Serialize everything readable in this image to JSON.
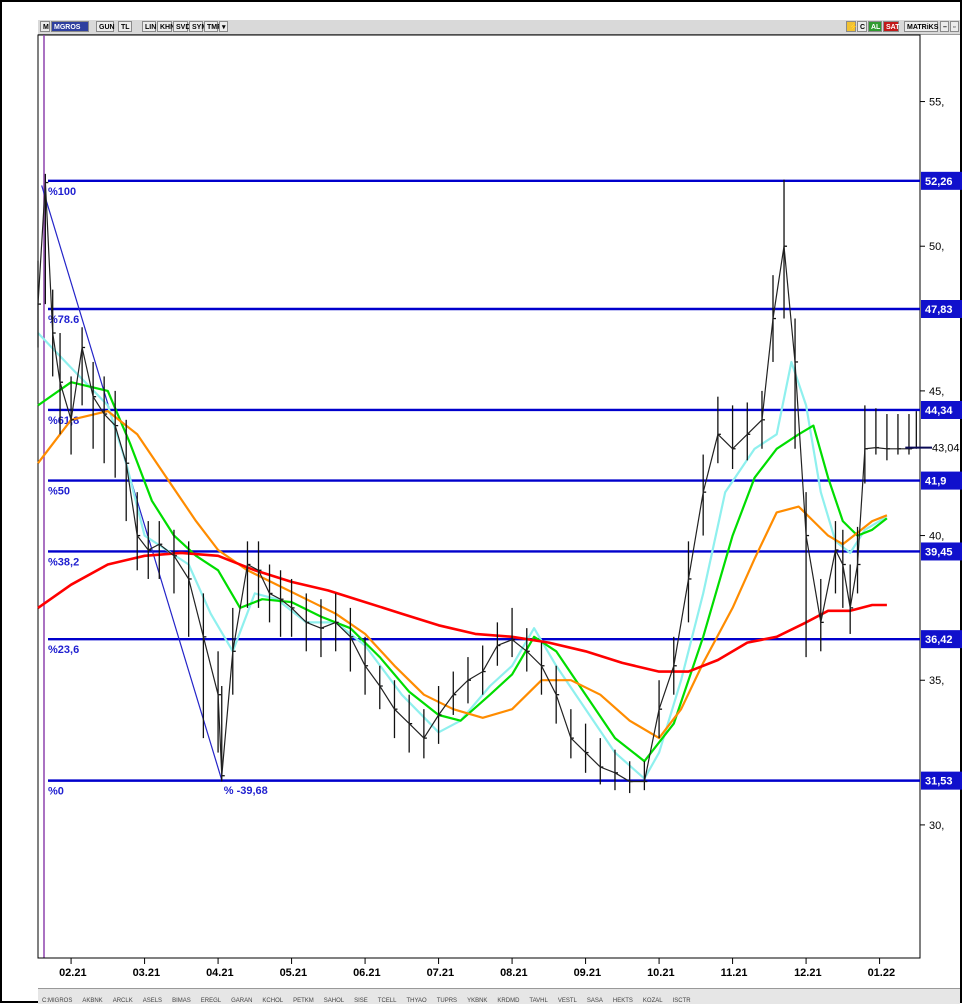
{
  "toolbar": {
    "symbol": "MGROS",
    "buttons": [
      "GUN",
      "TL",
      "LIN",
      "KHN",
      "SVD",
      "SYM",
      "TMP"
    ],
    "right_buttons": [
      "C",
      "AL",
      "SAT",
      "MATRiKS"
    ]
  },
  "chart_data": {
    "type": "line",
    "title": "",
    "symbol": "MGROS",
    "xlabel": "",
    "ylabel": "",
    "x_ticks": [
      "02.21",
      "03.21",
      "04.21",
      "05.21",
      "06.21",
      "07.21",
      "08.21",
      "09.21",
      "10.21",
      "11.21",
      "12.21",
      "01.22"
    ],
    "y_ticks": [
      "55,",
      "50,",
      "45,",
      "40,",
      "35,",
      "30,"
    ],
    "y_tick_values": [
      55,
      50,
      45,
      40,
      35,
      30
    ],
    "ylim": [
      25.4,
      57.3
    ],
    "xlim_months": [
      0.55,
      12.55
    ],
    "grid": false,
    "fib_levels": [
      {
        "label": "%100",
        "value": 52.26,
        "value_label": "52,26"
      },
      {
        "label": "%78.6",
        "value": 47.83,
        "value_label": "47,83"
      },
      {
        "label": "%61,8",
        "value": 44.34,
        "value_label": "44,34"
      },
      {
        "label": "%50",
        "value": 41.9,
        "value_label": "41,9"
      },
      {
        "label": "%38,2",
        "value": 39.45,
        "value_label": "39,45"
      },
      {
        "label": "%23,6",
        "value": 36.42,
        "value_label": "36,42"
      },
      {
        "label": "%0",
        "value": 31.53,
        "value_label": "31,53"
      }
    ],
    "last_price": {
      "value": 43.04,
      "label": "43,04"
    },
    "trend_line": {
      "label": "% -39,68",
      "from": {
        "month": 0.6,
        "value": 52.1
      },
      "to": {
        "month": 3.05,
        "value": 31.55
      }
    },
    "price": {
      "name": "Price",
      "x": [
        0.55,
        0.65,
        0.75,
        0.85,
        1.0,
        1.15,
        1.3,
        1.45,
        1.6,
        1.75,
        1.9,
        2.05,
        2.2,
        2.4,
        2.6,
        2.8,
        3.0,
        3.05,
        3.2,
        3.4,
        3.55,
        3.7,
        3.85,
        4.0,
        4.2,
        4.4,
        4.6,
        4.8,
        5.0,
        5.2,
        5.4,
        5.6,
        5.8,
        6.0,
        6.2,
        6.4,
        6.6,
        6.8,
        7.0,
        7.2,
        7.4,
        7.6,
        7.8,
        8.0,
        8.2,
        8.4,
        8.6,
        8.8,
        9.0,
        9.2,
        9.4,
        9.6,
        9.8,
        10.0,
        10.2,
        10.4,
        10.55,
        10.7,
        10.85,
        11.0,
        11.2,
        11.4,
        11.5,
        11.6,
        11.7,
        11.8,
        11.95,
        12.1,
        12.25,
        12.4,
        12.5
      ],
      "values": [
        48.0,
        52.2,
        47.0,
        45.3,
        44.0,
        46.5,
        44.8,
        44.2,
        43.8,
        42.5,
        40.0,
        39.5,
        39.7,
        39.3,
        38.5,
        36.5,
        34.5,
        31.7,
        36.0,
        39.0,
        38.8,
        38.0,
        37.8,
        37.5,
        37.0,
        36.8,
        37.0,
        36.5,
        35.5,
        34.8,
        34.0,
        33.5,
        33.0,
        33.8,
        34.5,
        35.0,
        35.3,
        36.2,
        36.4,
        36.0,
        35.5,
        34.5,
        33.0,
        32.5,
        32.0,
        31.8,
        31.5,
        31.5,
        34.0,
        35.5,
        38.5,
        41.5,
        43.5,
        43.0,
        43.5,
        44.0,
        47.5,
        50.0,
        46.0,
        40.0,
        37.0,
        39.5,
        39.0,
        37.5,
        39.0,
        43.0,
        43.04,
        43.0,
        43.0,
        43.0,
        43.04
      ],
      "highs": [
        49.5,
        52.5,
        48.5,
        47.0,
        45.5,
        47.2,
        46.0,
        45.5,
        45.0,
        44.0,
        41.5,
        40.5,
        40.5,
        40.2,
        39.8,
        38.0,
        36.0,
        34.8,
        37.5,
        39.8,
        39.8,
        39.0,
        38.8,
        38.5,
        38.0,
        37.8,
        38.0,
        37.5,
        36.5,
        35.5,
        35.0,
        34.5,
        34.0,
        34.8,
        35.3,
        35.8,
        36.2,
        37.0,
        37.5,
        36.8,
        36.3,
        35.5,
        34.0,
        33.5,
        33.0,
        32.6,
        32.2,
        32.2,
        35.0,
        36.5,
        39.8,
        42.8,
        44.8,
        44.5,
        44.6,
        45.0,
        49.0,
        52.3,
        47.5,
        41.5,
        38.5,
        40.5,
        40.2,
        39.0,
        40.3,
        44.5,
        44.4,
        44.2,
        44.2,
        44.2,
        44.3
      ],
      "lows": [
        46.5,
        48.0,
        45.5,
        43.5,
        42.8,
        44.5,
        43.0,
        42.5,
        42.0,
        40.5,
        38.8,
        38.5,
        38.5,
        38.0,
        36.5,
        33.0,
        32.5,
        31.5,
        34.5,
        37.5,
        37.5,
        37.0,
        36.5,
        36.5,
        36.0,
        35.8,
        36.0,
        35.3,
        34.5,
        34.0,
        33.0,
        32.5,
        32.3,
        32.8,
        33.8,
        34.2,
        34.5,
        35.5,
        35.8,
        35.3,
        34.5,
        33.5,
        32.3,
        31.8,
        31.4,
        31.2,
        31.1,
        31.2,
        33.0,
        34.5,
        37.0,
        40.0,
        42.5,
        42.3,
        42.6,
        43.0,
        46.0,
        47.5,
        43.0,
        35.8,
        36.0,
        38.0,
        37.5,
        36.6,
        38.0,
        41.8,
        42.8,
        42.6,
        42.8,
        42.8,
        43.0
      ]
    },
    "series": [
      {
        "name": "",
        "color": "#8ff0ee",
        "x": [
          0.55,
          1.0,
          1.5,
          1.75,
          2.0,
          2.3,
          2.6,
          2.9,
          3.2,
          3.5,
          3.8,
          4.2,
          4.6,
          5.0,
          5.5,
          6.0,
          6.3,
          6.7,
          7.0,
          7.3,
          7.6,
          8.0,
          8.4,
          8.8,
          9.0,
          9.3,
          9.6,
          9.9,
          10.3,
          10.6,
          10.8,
          11.0,
          11.2,
          11.4,
          11.6,
          11.8,
          12.0,
          12.1
        ],
        "values": [
          47.0,
          45.8,
          44.5,
          42.5,
          40.0,
          39.5,
          39.0,
          37.3,
          36.0,
          38.0,
          37.8,
          37.0,
          37.0,
          36.2,
          34.5,
          33.2,
          33.6,
          34.8,
          35.5,
          36.8,
          35.5,
          34.0,
          32.5,
          31.6,
          32.5,
          35.0,
          38.0,
          41.5,
          43.0,
          43.5,
          46.0,
          44.5,
          41.5,
          39.8,
          39.4,
          40.2,
          40.5,
          40.7
        ]
      },
      {
        "name": "",
        "color": "#00dd00",
        "x": [
          0.55,
          1.0,
          1.5,
          1.8,
          2.1,
          2.4,
          2.7,
          3.0,
          3.3,
          3.6,
          4.0,
          4.4,
          4.8,
          5.2,
          5.6,
          6.0,
          6.3,
          6.7,
          7.0,
          7.3,
          7.6,
          8.0,
          8.4,
          8.8,
          9.2,
          9.6,
          10.0,
          10.3,
          10.6,
          10.9,
          11.1,
          11.3,
          11.5,
          11.7,
          11.9,
          12.1
        ],
        "values": [
          44.5,
          45.3,
          45.0,
          43.2,
          41.2,
          40.0,
          39.3,
          38.8,
          37.5,
          37.8,
          37.7,
          37.2,
          36.8,
          35.8,
          34.6,
          33.8,
          33.6,
          34.5,
          35.2,
          36.5,
          36.0,
          34.5,
          33.0,
          32.2,
          33.5,
          36.5,
          40.0,
          42.0,
          43.0,
          43.5,
          43.8,
          42.0,
          40.5,
          40.0,
          40.2,
          40.6
        ]
      },
      {
        "name": "",
        "color": "#ff8c00",
        "x": [
          0.55,
          1.0,
          1.5,
          1.9,
          2.3,
          2.7,
          3.0,
          3.4,
          3.8,
          4.2,
          4.6,
          5.0,
          5.4,
          5.8,
          6.2,
          6.6,
          7.0,
          7.4,
          7.8,
          8.2,
          8.6,
          9.0,
          9.3,
          9.6,
          10.0,
          10.3,
          10.6,
          10.9,
          11.1,
          11.3,
          11.5,
          11.7,
          11.9,
          12.1
        ],
        "values": [
          42.5,
          44.0,
          44.3,
          43.5,
          42.0,
          40.5,
          39.5,
          38.8,
          38.3,
          37.8,
          37.3,
          36.6,
          35.5,
          34.5,
          34.0,
          33.7,
          34.0,
          35.0,
          35.0,
          34.5,
          33.6,
          33.0,
          34.0,
          35.6,
          37.5,
          39.2,
          40.8,
          41.0,
          40.5,
          40.0,
          39.7,
          40.1,
          40.5,
          40.7
        ]
      },
      {
        "name": "",
        "color": "#ff0000",
        "x": [
          0.55,
          1.0,
          1.5,
          2.0,
          2.5,
          3.0,
          3.5,
          4.0,
          4.5,
          5.0,
          5.5,
          6.0,
          6.5,
          7.0,
          7.5,
          8.0,
          8.5,
          9.0,
          9.4,
          9.8,
          10.2,
          10.6,
          11.0,
          11.3,
          11.6,
          11.9,
          12.1
        ],
        "values": [
          37.5,
          38.3,
          39.0,
          39.3,
          39.4,
          39.3,
          38.8,
          38.4,
          38.1,
          37.7,
          37.3,
          36.9,
          36.6,
          36.5,
          36.3,
          36.0,
          35.6,
          35.3,
          35.3,
          35.7,
          36.3,
          36.5,
          37.0,
          37.4,
          37.4,
          37.6,
          37.6
        ]
      }
    ]
  },
  "statusbar": [
    "C:MIGROS",
    "AKBNK",
    "ARCLK",
    "ASELS",
    "BIMAS",
    "EREGL",
    "GARAN",
    "KCHOL",
    "PETKM",
    "SAHOL",
    "SISE",
    "TCELL",
    "THYAO",
    "TUPRS",
    "YKBNK",
    "KRDMD",
    "TAVHL",
    "VESTL",
    "SASA",
    "HEKTS",
    "KOZAL",
    "ISCTR"
  ]
}
